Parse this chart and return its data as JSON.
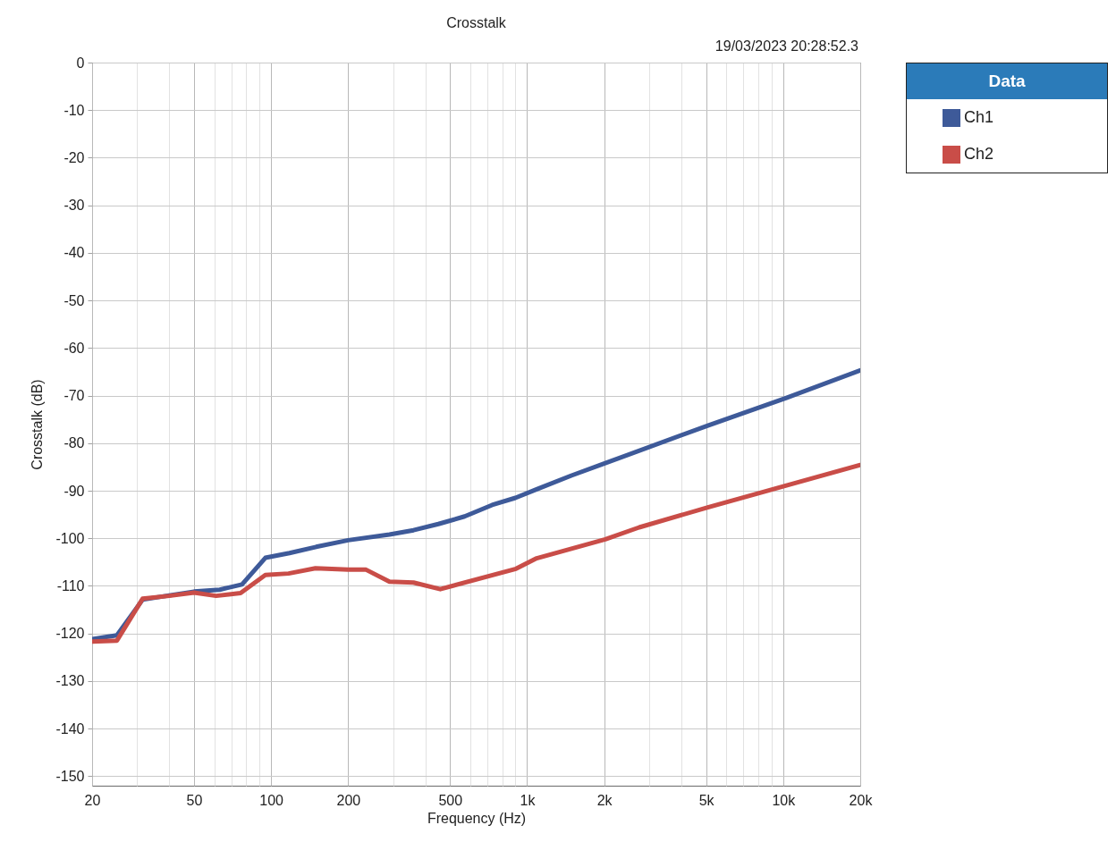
{
  "chart_data": {
    "type": "line",
    "title": "Crosstalk",
    "subtitle": "19/03/2023 20:28:52.3",
    "xlabel": "Frequency (Hz)",
    "ylabel": "Crosstalk (dB)",
    "legend_title": "Data",
    "log": "x",
    "xlim": [
      20,
      20000
    ],
    "xticks": [
      20,
      {
        "value": 30,
        "label": null
      },
      {
        "value": 40,
        "label": null
      },
      50,
      {
        "value": 60,
        "label": null
      },
      {
        "value": 70,
        "label": null
      },
      {
        "value": 80,
        "label": null
      },
      {
        "value": 90,
        "label": null
      },
      100,
      200,
      {
        "value": 300,
        "label": null
      },
      {
        "value": 400,
        "label": null
      },
      500,
      {
        "value": 600,
        "label": null
      },
      {
        "value": 700,
        "label": null
      },
      {
        "value": 800,
        "label": null
      },
      {
        "value": 900,
        "label": null
      },
      {
        "value": 1000,
        "label": "1k"
      },
      {
        "value": 2000,
        "label": "2k"
      },
      {
        "value": 3000,
        "label": null
      },
      {
        "value": 4000,
        "label": null
      },
      {
        "value": 5000,
        "label": "5k"
      },
      {
        "value": 6000,
        "label": null
      },
      {
        "value": 7000,
        "label": null
      },
      {
        "value": 8000,
        "label": null
      },
      {
        "value": 9000,
        "label": null
      },
      {
        "value": 10000,
        "label": "10k"
      },
      {
        "value": 20000,
        "label": "20k"
      }
    ],
    "ylim": [
      -152,
      0
    ],
    "yticks": [
      0,
      -10,
      -20,
      -30,
      -40,
      -50,
      -60,
      -70,
      -80,
      -90,
      -100,
      -110,
      -120,
      -130,
      -140,
      -150
    ],
    "grid": true,
    "legend": "top right",
    "series": [
      {
        "name": "Ch1",
        "color": "#3e5a99",
        "x": [
          20,
          25,
          31.5,
          40,
          50,
          63,
          77,
          95,
          118,
          150,
          200,
          290,
          360,
          450,
          570,
          730,
          900,
          1090,
          1490,
          2020,
          5080,
          10300,
          20000
        ],
        "values": [
          -121.2,
          -120.4,
          -112.9,
          -112.0,
          -111.2,
          -110.8,
          -109.7,
          -104.1,
          -103.1,
          -101.8,
          -100.4,
          -99.2,
          -98.3,
          -97.0,
          -95.4,
          -93.0,
          -91.5,
          -89.7,
          -86.8,
          -84.2,
          -76.3,
          -70.5,
          -64.7
        ]
      },
      {
        "name": "Ch2",
        "color": "#c94d48",
        "x": [
          20,
          25,
          31.5,
          40,
          50,
          61,
          76,
          95,
          117,
          149,
          200,
          235,
          290,
          360,
          458,
          905,
          1090,
          2020,
          2740,
          5080,
          10300,
          20000
        ],
        "values": [
          -121.7,
          -121.5,
          -112.7,
          -112.1,
          -111.4,
          -112.1,
          -111.5,
          -107.7,
          -107.4,
          -106.3,
          -106.6,
          -106.6,
          -109.1,
          -109.3,
          -110.7,
          -106.4,
          -104.2,
          -100.2,
          -97.7,
          -93.5,
          -88.9,
          -84.6
        ]
      }
    ]
  }
}
